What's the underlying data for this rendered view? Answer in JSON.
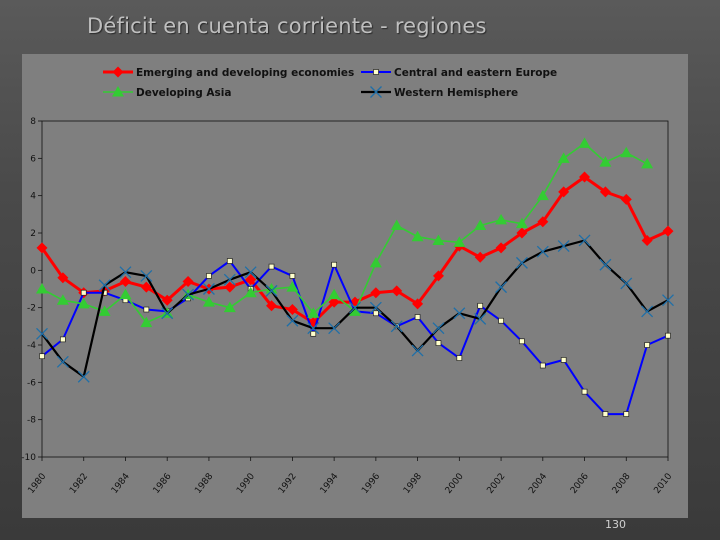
{
  "slide": {
    "title": "Déficit en cuenta corriente - regiones",
    "page_number": "130"
  },
  "colors": {
    "background": "#4c4c4c",
    "chart_background": "#7f7f7f",
    "plot_border": "#111111"
  },
  "chart_data": {
    "type": "line",
    "title": "",
    "xlabel": "",
    "ylabel": "",
    "ylim": [
      -10,
      8
    ],
    "xlim": [
      1980,
      2010
    ],
    "y_ticks": [
      8,
      6,
      4,
      2,
      0,
      -2,
      -4,
      -6,
      -8,
      -10
    ],
    "y_tick_labels": [
      "8",
      "6",
      "4",
      "2",
      "0",
      "-2",
      "-4",
      "-6",
      "-8",
      "-10"
    ],
    "x_ticks": [
      1980,
      1982,
      1984,
      1986,
      1988,
      1990,
      1992,
      1994,
      1996,
      1998,
      2000,
      2002,
      2004,
      2006,
      2008,
      2010
    ],
    "x_tick_labels": [
      "1980",
      "1982",
      "1984",
      "1986",
      "1988",
      "1990",
      "1992",
      "1994",
      "1996",
      "1998",
      "2000",
      "2002",
      "2004",
      "2006",
      "2008",
      "2010"
    ],
    "grid": false,
    "legend_position": "top",
    "x": [
      1980,
      1981,
      1982,
      1983,
      1984,
      1985,
      1986,
      1987,
      1988,
      1989,
      1990,
      1991,
      1992,
      1993,
      1994,
      1995,
      1996,
      1997,
      1998,
      1999,
      2000,
      2001,
      2002,
      2003,
      2004,
      2005,
      2006,
      2007,
      2008,
      2009,
      2010
    ],
    "series": [
      {
        "name": "Emerging and developing economies",
        "color": "#ff0000",
        "marker": "diamond",
        "values": [
          1.2,
          -0.4,
          -1.2,
          -1.1,
          -0.6,
          -0.9,
          -1.6,
          -0.6,
          -1.0,
          -0.9,
          -0.5,
          -1.9,
          -2.1,
          -2.8,
          -1.7,
          -1.7,
          -1.2,
          -1.1,
          -1.8,
          -0.3,
          1.3,
          0.7,
          1.2,
          2.0,
          2.6,
          4.2,
          5.0,
          4.2,
          3.8,
          1.6,
          2.1
        ]
      },
      {
        "name": "Central and eastern Europe",
        "color": "#0000ff",
        "marker": "square",
        "values": [
          -4.6,
          -3.7,
          -1.2,
          -1.2,
          -1.6,
          -2.1,
          -2.2,
          -1.5,
          -0.3,
          0.5,
          -1.0,
          0.2,
          -0.3,
          -3.4,
          0.3,
          -2.2,
          -2.3,
          -3.0,
          -2.5,
          -3.9,
          -4.7,
          -1.9,
          -2.7,
          -3.8,
          -5.1,
          -4.8,
          -6.5,
          -7.7,
          -7.7,
          -4.0,
          -3.5
        ]
      },
      {
        "name": "Developing Asia",
        "color": "#33cc33",
        "marker": "triangle",
        "values": [
          -1.0,
          -1.6,
          -1.8,
          -2.2,
          -1.3,
          -2.8,
          -2.3,
          -1.3,
          -1.7,
          -2.0,
          -1.2,
          -1.0,
          -0.9,
          -2.3,
          -1.3,
          -2.2,
          0.4,
          2.4,
          1.8,
          1.6,
          1.5,
          2.4,
          2.7,
          2.5,
          4.0,
          6.0,
          6.8,
          5.8,
          6.3,
          5.7,
          null
        ]
      },
      {
        "name": "Western Hemisphere",
        "color": "#000000",
        "marker": "x",
        "values": [
          -3.4,
          -4.9,
          -5.7,
          -0.8,
          -0.1,
          -0.3,
          -2.3,
          -1.3,
          -1.0,
          -0.5,
          -0.1,
          -1.1,
          -2.7,
          -3.1,
          -3.1,
          -2.0,
          -2.0,
          -3.0,
          -4.3,
          -3.1,
          -2.3,
          -2.6,
          -0.9,
          0.4,
          1.0,
          1.3,
          1.6,
          0.3,
          -0.7,
          -2.2,
          -1.6
        ]
      }
    ]
  }
}
